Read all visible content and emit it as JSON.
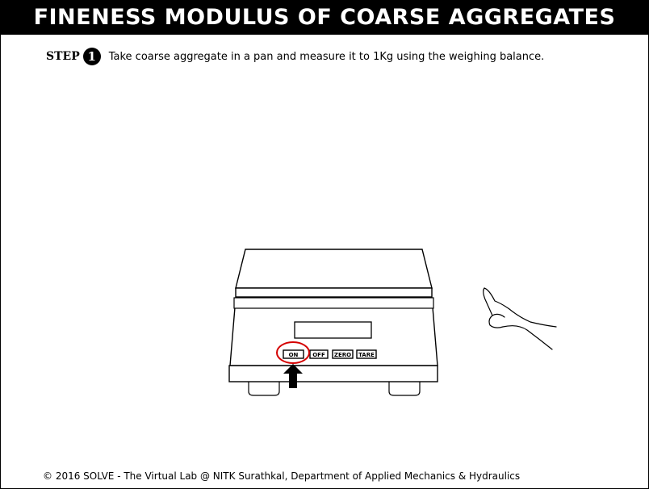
{
  "header": {
    "title": "FINENESS MODULUS OF COARSE AGGREGATES"
  },
  "step": {
    "label": "STEP",
    "number": "1",
    "instruction": "Take coarse aggregate in a pan and measure it to 1Kg using the weighing balance."
  },
  "balance": {
    "buttons": {
      "on": "ON",
      "off": "OFF",
      "zero": "ZERO",
      "tare": "TARE"
    },
    "highlight_color": "#d40000"
  },
  "footer": {
    "text": "© 2016 SOLVE - The Virtual Lab @ NITK Surathkal, Department of Applied Mechanics & Hydraulics"
  }
}
